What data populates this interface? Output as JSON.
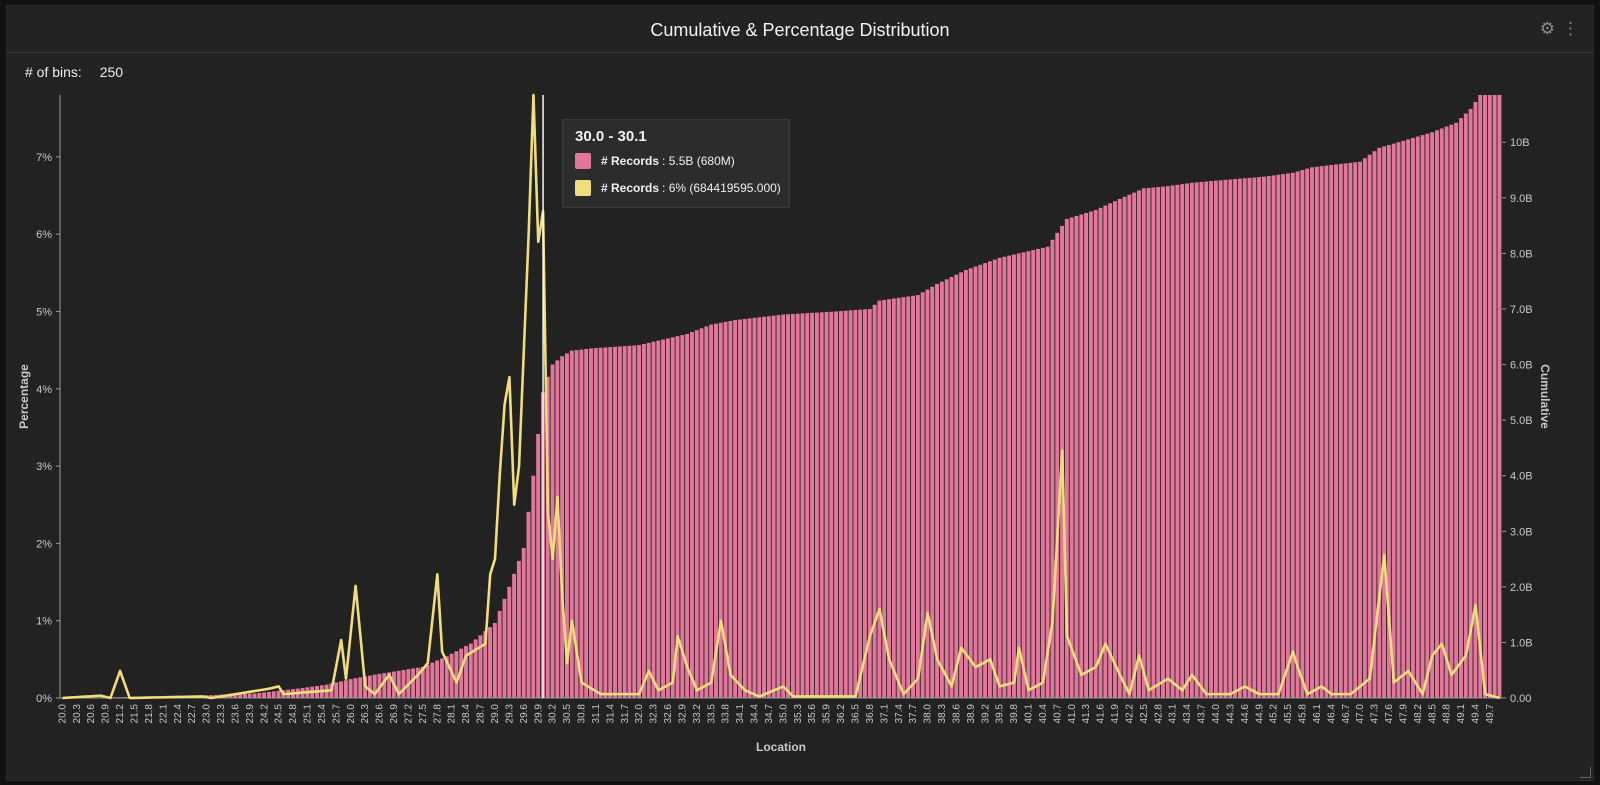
{
  "panel": {
    "title": "Cumulative & Percentage Distribution",
    "bins_label": "# of bins:",
    "bins_value": "250"
  },
  "icons": {
    "settings": "gear-icon",
    "menu": "kebab-menu-icon"
  },
  "colors": {
    "cumulative": "#e2779b",
    "percentage": "#f0dd7b",
    "background": "#222222"
  },
  "tooltip": {
    "range": "30.0 - 30.1",
    "rows": [
      {
        "label": "# Records",
        "value": ": 5.5B (680M)",
        "color": "#e2779b"
      },
      {
        "label": "# Records",
        "value": ": 6% (684419595.000)",
        "color": "#f0dd7b"
      }
    ]
  },
  "chart_data": {
    "type": "bar",
    "xlabel": "Location",
    "ylabel_left": "Percentage",
    "ylabel_right": "Cumulative",
    "x_start": 20.0,
    "x_step": 0.1,
    "left_ticks": [
      "0%",
      "1%",
      "2%",
      "3%",
      "4%",
      "5%",
      "6%",
      "7%"
    ],
    "right_ticks": [
      "0.00",
      "1.0B",
      "2.0B",
      "3.0B",
      "4.0B",
      "5.0B",
      "6.0B",
      "7.0B",
      "8.0B",
      "9.0B",
      "10B"
    ],
    "ylim_left": [
      0,
      7.8
    ],
    "ylim_right": [
      0,
      10.85
    ],
    "highlight_x": 30.0,
    "cumulative_anchors": [
      [
        20.0,
        0.0
      ],
      [
        21.0,
        0.01
      ],
      [
        22.0,
        0.03
      ],
      [
        23.0,
        0.05
      ],
      [
        24.0,
        0.08
      ],
      [
        24.5,
        0.13
      ],
      [
        25.0,
        0.18
      ],
      [
        25.5,
        0.24
      ],
      [
        26.0,
        0.34
      ],
      [
        26.5,
        0.42
      ],
      [
        27.0,
        0.49
      ],
      [
        27.5,
        0.56
      ],
      [
        28.0,
        0.75
      ],
      [
        28.5,
        0.98
      ],
      [
        29.0,
        1.35
      ],
      [
        29.3,
        2.0
      ],
      [
        29.6,
        2.7
      ],
      [
        29.8,
        4.0
      ],
      [
        30.0,
        5.5
      ],
      [
        30.1,
        5.78
      ],
      [
        30.2,
        6.0
      ],
      [
        30.4,
        6.15
      ],
      [
        30.6,
        6.25
      ],
      [
        31.0,
        6.29
      ],
      [
        32.0,
        6.35
      ],
      [
        33.0,
        6.55
      ],
      [
        33.5,
        6.72
      ],
      [
        34.0,
        6.8
      ],
      [
        35.0,
        6.9
      ],
      [
        36.0,
        6.95
      ],
      [
        36.8,
        7.0
      ],
      [
        37.0,
        7.15
      ],
      [
        37.8,
        7.25
      ],
      [
        38.2,
        7.45
      ],
      [
        38.8,
        7.7
      ],
      [
        39.5,
        7.92
      ],
      [
        40.5,
        8.12
      ],
      [
        40.9,
        8.62
      ],
      [
        41.5,
        8.78
      ],
      [
        42.0,
        8.98
      ],
      [
        42.5,
        9.17
      ],
      [
        43.0,
        9.21
      ],
      [
        43.5,
        9.27
      ],
      [
        44.0,
        9.31
      ],
      [
        45.0,
        9.38
      ],
      [
        45.6,
        9.45
      ],
      [
        46.0,
        9.55
      ],
      [
        47.0,
        9.65
      ],
      [
        47.4,
        9.9
      ],
      [
        47.8,
        10.0
      ],
      [
        48.5,
        10.18
      ],
      [
        49.0,
        10.35
      ],
      [
        49.3,
        10.6
      ],
      [
        49.5,
        10.85
      ],
      [
        49.9,
        10.85
      ]
    ],
    "percentage_anchors": [
      [
        20.0,
        0.0
      ],
      [
        20.8,
        0.03
      ],
      [
        21.0,
        0.0
      ],
      [
        21.2,
        0.35
      ],
      [
        21.4,
        0.0
      ],
      [
        22.9,
        0.02
      ],
      [
        23.1,
        0.0
      ],
      [
        24.3,
        0.12
      ],
      [
        24.5,
        0.15
      ],
      [
        24.6,
        0.05
      ],
      [
        25.6,
        0.1
      ],
      [
        25.8,
        0.75
      ],
      [
        25.9,
        0.25
      ],
      [
        26.1,
        1.45
      ],
      [
        26.3,
        0.15
      ],
      [
        26.5,
        0.05
      ],
      [
        26.8,
        0.3
      ],
      [
        27.0,
        0.05
      ],
      [
        27.4,
        0.3
      ],
      [
        27.6,
        0.45
      ],
      [
        27.8,
        1.6
      ],
      [
        27.9,
        0.6
      ],
      [
        28.2,
        0.2
      ],
      [
        28.4,
        0.55
      ],
      [
        28.8,
        0.7
      ],
      [
        28.9,
        1.6
      ],
      [
        29.0,
        1.8
      ],
      [
        29.1,
        2.9
      ],
      [
        29.2,
        3.8
      ],
      [
        29.3,
        4.15
      ],
      [
        29.4,
        2.5
      ],
      [
        29.5,
        3.0
      ],
      [
        29.7,
        6.0
      ],
      [
        29.8,
        7.8
      ],
      [
        29.9,
        5.9
      ],
      [
        30.0,
        6.3
      ],
      [
        30.1,
        2.4
      ],
      [
        30.2,
        1.8
      ],
      [
        30.3,
        2.6
      ],
      [
        30.4,
        1.3
      ],
      [
        30.5,
        0.45
      ],
      [
        30.6,
        1.0
      ],
      [
        30.8,
        0.2
      ],
      [
        31.2,
        0.05
      ],
      [
        32.0,
        0.05
      ],
      [
        32.2,
        0.35
      ],
      [
        32.4,
        0.1
      ],
      [
        32.7,
        0.2
      ],
      [
        32.8,
        0.8
      ],
      [
        33.0,
        0.4
      ],
      [
        33.2,
        0.1
      ],
      [
        33.5,
        0.2
      ],
      [
        33.7,
        1.0
      ],
      [
        33.9,
        0.3
      ],
      [
        34.2,
        0.1
      ],
      [
        34.5,
        0.02
      ],
      [
        35.0,
        0.15
      ],
      [
        35.2,
        0.02
      ],
      [
        36.0,
        0.02
      ],
      [
        36.5,
        0.02
      ],
      [
        36.8,
        0.8
      ],
      [
        37.0,
        1.15
      ],
      [
        37.2,
        0.5
      ],
      [
        37.5,
        0.05
      ],
      [
        37.8,
        0.25
      ],
      [
        38.0,
        1.1
      ],
      [
        38.2,
        0.5
      ],
      [
        38.5,
        0.15
      ],
      [
        38.7,
        0.65
      ],
      [
        39.0,
        0.4
      ],
      [
        39.3,
        0.5
      ],
      [
        39.5,
        0.15
      ],
      [
        39.8,
        0.2
      ],
      [
        39.9,
        0.65
      ],
      [
        40.1,
        0.1
      ],
      [
        40.4,
        0.2
      ],
      [
        40.6,
        1.0
      ],
      [
        40.8,
        3.2
      ],
      [
        40.9,
        0.8
      ],
      [
        41.2,
        0.3
      ],
      [
        41.5,
        0.4
      ],
      [
        41.7,
        0.7
      ],
      [
        42.0,
        0.3
      ],
      [
        42.2,
        0.05
      ],
      [
        42.4,
        0.55
      ],
      [
        42.6,
        0.1
      ],
      [
        43.0,
        0.25
      ],
      [
        43.3,
        0.1
      ],
      [
        43.5,
        0.3
      ],
      [
        43.8,
        0.05
      ],
      [
        44.3,
        0.05
      ],
      [
        44.6,
        0.15
      ],
      [
        44.9,
        0.05
      ],
      [
        45.3,
        0.05
      ],
      [
        45.6,
        0.6
      ],
      [
        45.7,
        0.4
      ],
      [
        45.9,
        0.05
      ],
      [
        46.2,
        0.15
      ],
      [
        46.4,
        0.05
      ],
      [
        46.8,
        0.05
      ],
      [
        47.2,
        0.25
      ],
      [
        47.5,
        1.85
      ],
      [
        47.7,
        0.2
      ],
      [
        48.0,
        0.35
      ],
      [
        48.3,
        0.05
      ],
      [
        48.5,
        0.55
      ],
      [
        48.7,
        0.7
      ],
      [
        48.9,
        0.3
      ],
      [
        49.2,
        0.55
      ],
      [
        49.4,
        1.2
      ],
      [
        49.6,
        0.05
      ],
      [
        49.9,
        0.0
      ]
    ]
  }
}
